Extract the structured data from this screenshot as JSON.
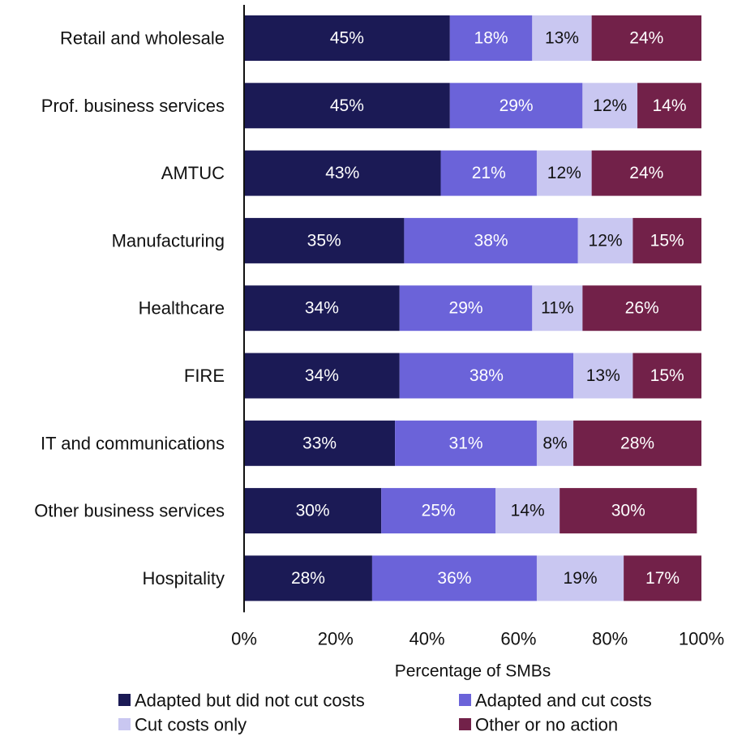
{
  "chart_data": {
    "type": "bar",
    "orientation": "horizontal",
    "stacked": true,
    "title": "",
    "xlabel": "Percentage of SMBs",
    "ylabel": "",
    "xlim": [
      0,
      100
    ],
    "x_ticks": [
      "0%",
      "20%",
      "40%",
      "60%",
      "80%",
      "100%"
    ],
    "x_tick_values": [
      0,
      20,
      40,
      60,
      80,
      100
    ],
    "grid": false,
    "legend_position": "bottom",
    "categories": [
      "Retail and wholesale",
      "Prof. business services",
      "AMTUC",
      "Manufacturing",
      "Healthcare",
      "FIRE",
      "IT and communications",
      "Other business services",
      "Hospitality"
    ],
    "series": [
      {
        "name": "Adapted but did not cut costs",
        "color": "#1b1a55",
        "label_color": "#ffffff",
        "values": [
          45,
          45,
          43,
          35,
          34,
          34,
          33,
          30,
          28
        ],
        "labels": [
          "45%",
          "45%",
          "43%",
          "35%",
          "34%",
          "34%",
          "33%",
          "30%",
          "28%"
        ]
      },
      {
        "name": "Adapted and cut costs",
        "color": "#6b63d9",
        "label_color": "#ffffff",
        "values": [
          18,
          29,
          21,
          38,
          29,
          38,
          31,
          25,
          36
        ],
        "labels": [
          "18%",
          "29%",
          "21%",
          "38%",
          "29%",
          "38%",
          "31%",
          "25%",
          "36%"
        ]
      },
      {
        "name": "Cut costs only",
        "color": "#c9c7f1",
        "label_color": "#111111",
        "values": [
          13,
          12,
          12,
          12,
          11,
          13,
          8,
          14,
          19
        ],
        "labels": [
          "13%",
          "12%",
          "12%",
          "12%",
          "11%",
          "13%",
          "8%",
          "14%",
          "19%"
        ]
      },
      {
        "name": "Other or no action",
        "color": "#722149",
        "label_color": "#ffffff",
        "values": [
          24,
          14,
          24,
          15,
          26,
          15,
          28,
          30,
          17
        ],
        "labels": [
          "24%",
          "14%",
          "24%",
          "15%",
          "26%",
          "15%",
          "28%",
          "30%",
          "17%"
        ]
      }
    ]
  }
}
